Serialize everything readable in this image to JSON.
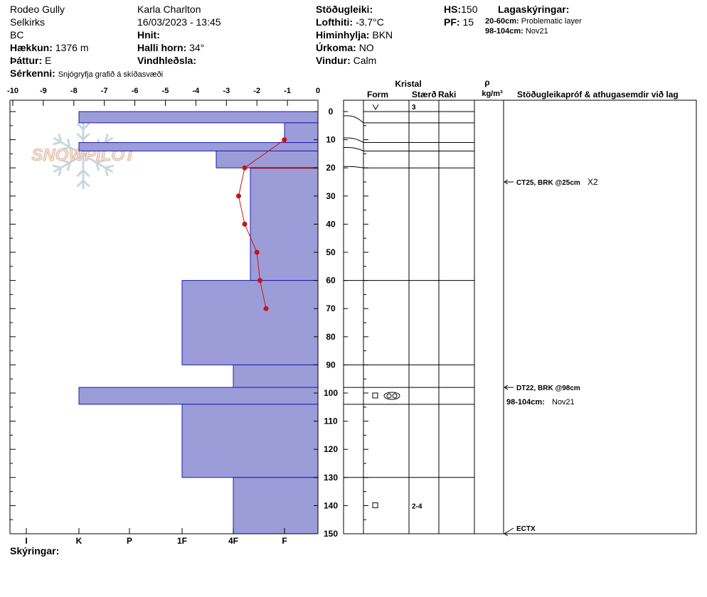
{
  "header": {
    "location": "Rodeo Gully",
    "range": "Selkirks",
    "region": "BC",
    "elevation_label": "Hækkun:",
    "elevation": "1376 m",
    "aspect_label": "Þáttur:",
    "aspect": "E",
    "features_label": "Sérkenni:",
    "features": "Snjógryfja grafið á skíðasvæði",
    "observer": "Karla Charlton",
    "datetime": "16/03/2023 - 13:45",
    "coords_label": "Hnit:",
    "slope_label": "Halli horn:",
    "slope": "34°",
    "wind_loading_label": "Vindhleðsla:",
    "stability_label": "Stöðugleiki:",
    "air_temp_label": "Lofthiti:",
    "air_temp": "-3.7°C",
    "sky_label": "Himinhylja:",
    "sky": "BKN",
    "precip_label": "Úrkoma:",
    "precip": "NO",
    "wind_label": "Vindur:",
    "wind": "Calm",
    "hs_label": "HS:",
    "hs": "150",
    "pf_label": "PF:",
    "pf": "15",
    "layer_notes_title": "Lagaskýringar:",
    "layer_notes": [
      {
        "depth": "20-60cm:",
        "text": "Problematic layer"
      },
      {
        "depth": "98-104cm:",
        "text": "Nov21"
      }
    ]
  },
  "footer": {
    "notes_label": "Skýringar:"
  },
  "watermark": "SNOWPILOT",
  "columns": {
    "crystal": "Kristal",
    "form": "Form",
    "size": "Stærð",
    "moisture": "Raki",
    "density_symbol": "ρ",
    "density_unit": "kg/m³",
    "tests": "Stöðugleikapróf & athugasemdir við lag"
  },
  "colors": {
    "hardness_fill": "#9c9cd8",
    "hardness_stroke": "#1c1cb0",
    "temp_line": "#c81414",
    "layer_highlight": "#a01010"
  },
  "chart_data": {
    "type": "snow_profile",
    "depth_axis": {
      "range": [
        0,
        150
      ],
      "ticks": [
        0,
        10,
        20,
        30,
        40,
        50,
        60,
        70,
        80,
        90,
        100,
        110,
        120,
        130,
        140,
        150
      ],
      "inverted": true
    },
    "temperature_axis": {
      "range": [
        -10,
        0
      ],
      "ticks": [
        -10,
        -9,
        -8,
        -7,
        -6,
        -5,
        -4,
        -3,
        -2,
        -1,
        0
      ]
    },
    "hardness_axis": {
      "labels": [
        "I",
        "K",
        "P",
        "1F",
        "4F",
        "F"
      ]
    },
    "hardness_layers": [
      {
        "top": 0,
        "bottom": 4,
        "hardness": "K"
      },
      {
        "top": 4,
        "bottom": 11,
        "hardness": "F"
      },
      {
        "top": 11,
        "bottom": 14,
        "hardness": "K"
      },
      {
        "top": 14,
        "bottom": 20,
        "hardness": "4F+"
      },
      {
        "top": 20,
        "bottom": 60,
        "hardness": "4F-"
      },
      {
        "top": 60,
        "bottom": 90,
        "hardness": "1F"
      },
      {
        "top": 90,
        "bottom": 98,
        "hardness": "4F"
      },
      {
        "top": 98,
        "bottom": 104,
        "hardness": "K"
      },
      {
        "top": 104,
        "bottom": 130,
        "hardness": "1F"
      },
      {
        "top": 130,
        "bottom": 150,
        "hardness": "4F"
      }
    ],
    "temperature_profile": [
      {
        "depth": 10,
        "temp": -1.1
      },
      {
        "depth": 20,
        "temp": -2.4
      },
      {
        "depth": 30,
        "temp": -2.6
      },
      {
        "depth": 40,
        "temp": -2.4
      },
      {
        "depth": 50,
        "temp": -2.0
      },
      {
        "depth": 60,
        "temp": -1.9
      },
      {
        "depth": 70,
        "temp": -1.7
      }
    ],
    "layer_boundaries": [
      4,
      11,
      14,
      20,
      60,
      90,
      98,
      104,
      130
    ],
    "highlighted_boundary": 20,
    "crystals": [
      {
        "depth": 0,
        "form": "∨",
        "size": "3"
      },
      {
        "depth": 101,
        "form": "□",
        "form2": "◎",
        "size": ""
      },
      {
        "depth": 140,
        "form": "□",
        "size": "2-4"
      }
    ],
    "tests": [
      {
        "depth": 25,
        "label": "CT25, BRK @25cm",
        "extra": "X2"
      },
      {
        "depth": 98,
        "label": "DT22, BRK @98cm",
        "extra": ""
      },
      {
        "depth": 150,
        "label": "ECTX",
        "extra": ""
      }
    ],
    "layer_comments": [
      {
        "depth": 101,
        "range": "98-104cm:",
        "text": "Nov21"
      }
    ]
  }
}
